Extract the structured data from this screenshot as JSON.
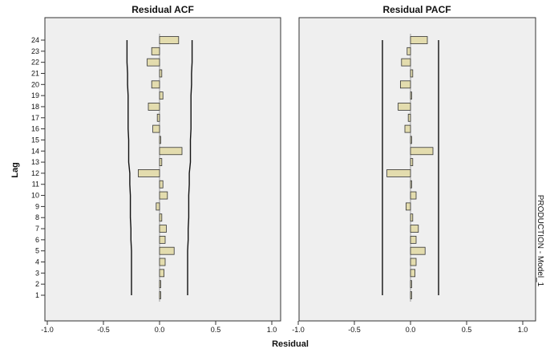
{
  "chart_data": {
    "type": "bar",
    "orientation": "horizontal",
    "y_axis_label": "Lag",
    "x_axis_label": "Residual",
    "side_label": "PRODUCTION - Model_1",
    "lags": [
      1,
      2,
      3,
      4,
      5,
      6,
      7,
      8,
      9,
      10,
      11,
      12,
      13,
      14,
      15,
      16,
      17,
      18,
      19,
      20,
      21,
      22,
      23,
      24
    ],
    "xlim": [
      -1.0,
      1.0
    ],
    "x_ticks": [
      -1.0,
      -0.5,
      0.0,
      0.5,
      1.0
    ],
    "x_tick_labels": [
      "-1.0",
      "-0.5",
      "0.0",
      "0.5",
      "1.0"
    ],
    "bar_color": "#e3dcae",
    "panel_bg": "#efefef",
    "panels": [
      {
        "title": "Residual ACF",
        "values": [
          0.01,
          0.01,
          0.04,
          0.05,
          0.13,
          0.05,
          0.06,
          0.02,
          -0.03,
          0.07,
          0.03,
          -0.19,
          0.02,
          0.2,
          0.01,
          -0.06,
          -0.02,
          -0.1,
          0.03,
          -0.07,
          0.02,
          -0.11,
          -0.07,
          0.17
        ],
        "upper_limit": [
          0.25,
          0.25,
          0.25,
          0.25,
          0.25,
          0.255,
          0.255,
          0.26,
          0.26,
          0.26,
          0.265,
          0.265,
          0.275,
          0.275,
          0.275,
          0.28,
          0.28,
          0.28,
          0.28,
          0.285,
          0.285,
          0.29,
          0.29,
          0.29
        ],
        "lower_limit": [
          -0.25,
          -0.25,
          -0.25,
          -0.25,
          -0.25,
          -0.255,
          -0.255,
          -0.26,
          -0.26,
          -0.26,
          -0.265,
          -0.265,
          -0.275,
          -0.275,
          -0.275,
          -0.28,
          -0.28,
          -0.28,
          -0.28,
          -0.285,
          -0.285,
          -0.29,
          -0.29,
          -0.29
        ]
      },
      {
        "title": "Residual PACF",
        "values": [
          0.01,
          0.01,
          0.04,
          0.05,
          0.13,
          0.05,
          0.07,
          0.02,
          -0.04,
          0.05,
          0.01,
          -0.21,
          0.02,
          0.2,
          0.01,
          -0.05,
          -0.02,
          -0.11,
          0.01,
          -0.09,
          0.02,
          -0.08,
          -0.03,
          0.15
        ],
        "upper_limit": [
          0.25,
          0.25,
          0.25,
          0.25,
          0.25,
          0.25,
          0.25,
          0.25,
          0.25,
          0.25,
          0.25,
          0.25,
          0.25,
          0.25,
          0.25,
          0.25,
          0.25,
          0.25,
          0.25,
          0.25,
          0.25,
          0.25,
          0.25,
          0.25
        ],
        "lower_limit": [
          -0.25,
          -0.25,
          -0.25,
          -0.25,
          -0.25,
          -0.25,
          -0.25,
          -0.25,
          -0.25,
          -0.25,
          -0.25,
          -0.25,
          -0.25,
          -0.25,
          -0.25,
          -0.25,
          -0.25,
          -0.25,
          -0.25,
          -0.25,
          -0.25,
          -0.25,
          -0.25,
          -0.25
        ]
      }
    ]
  }
}
